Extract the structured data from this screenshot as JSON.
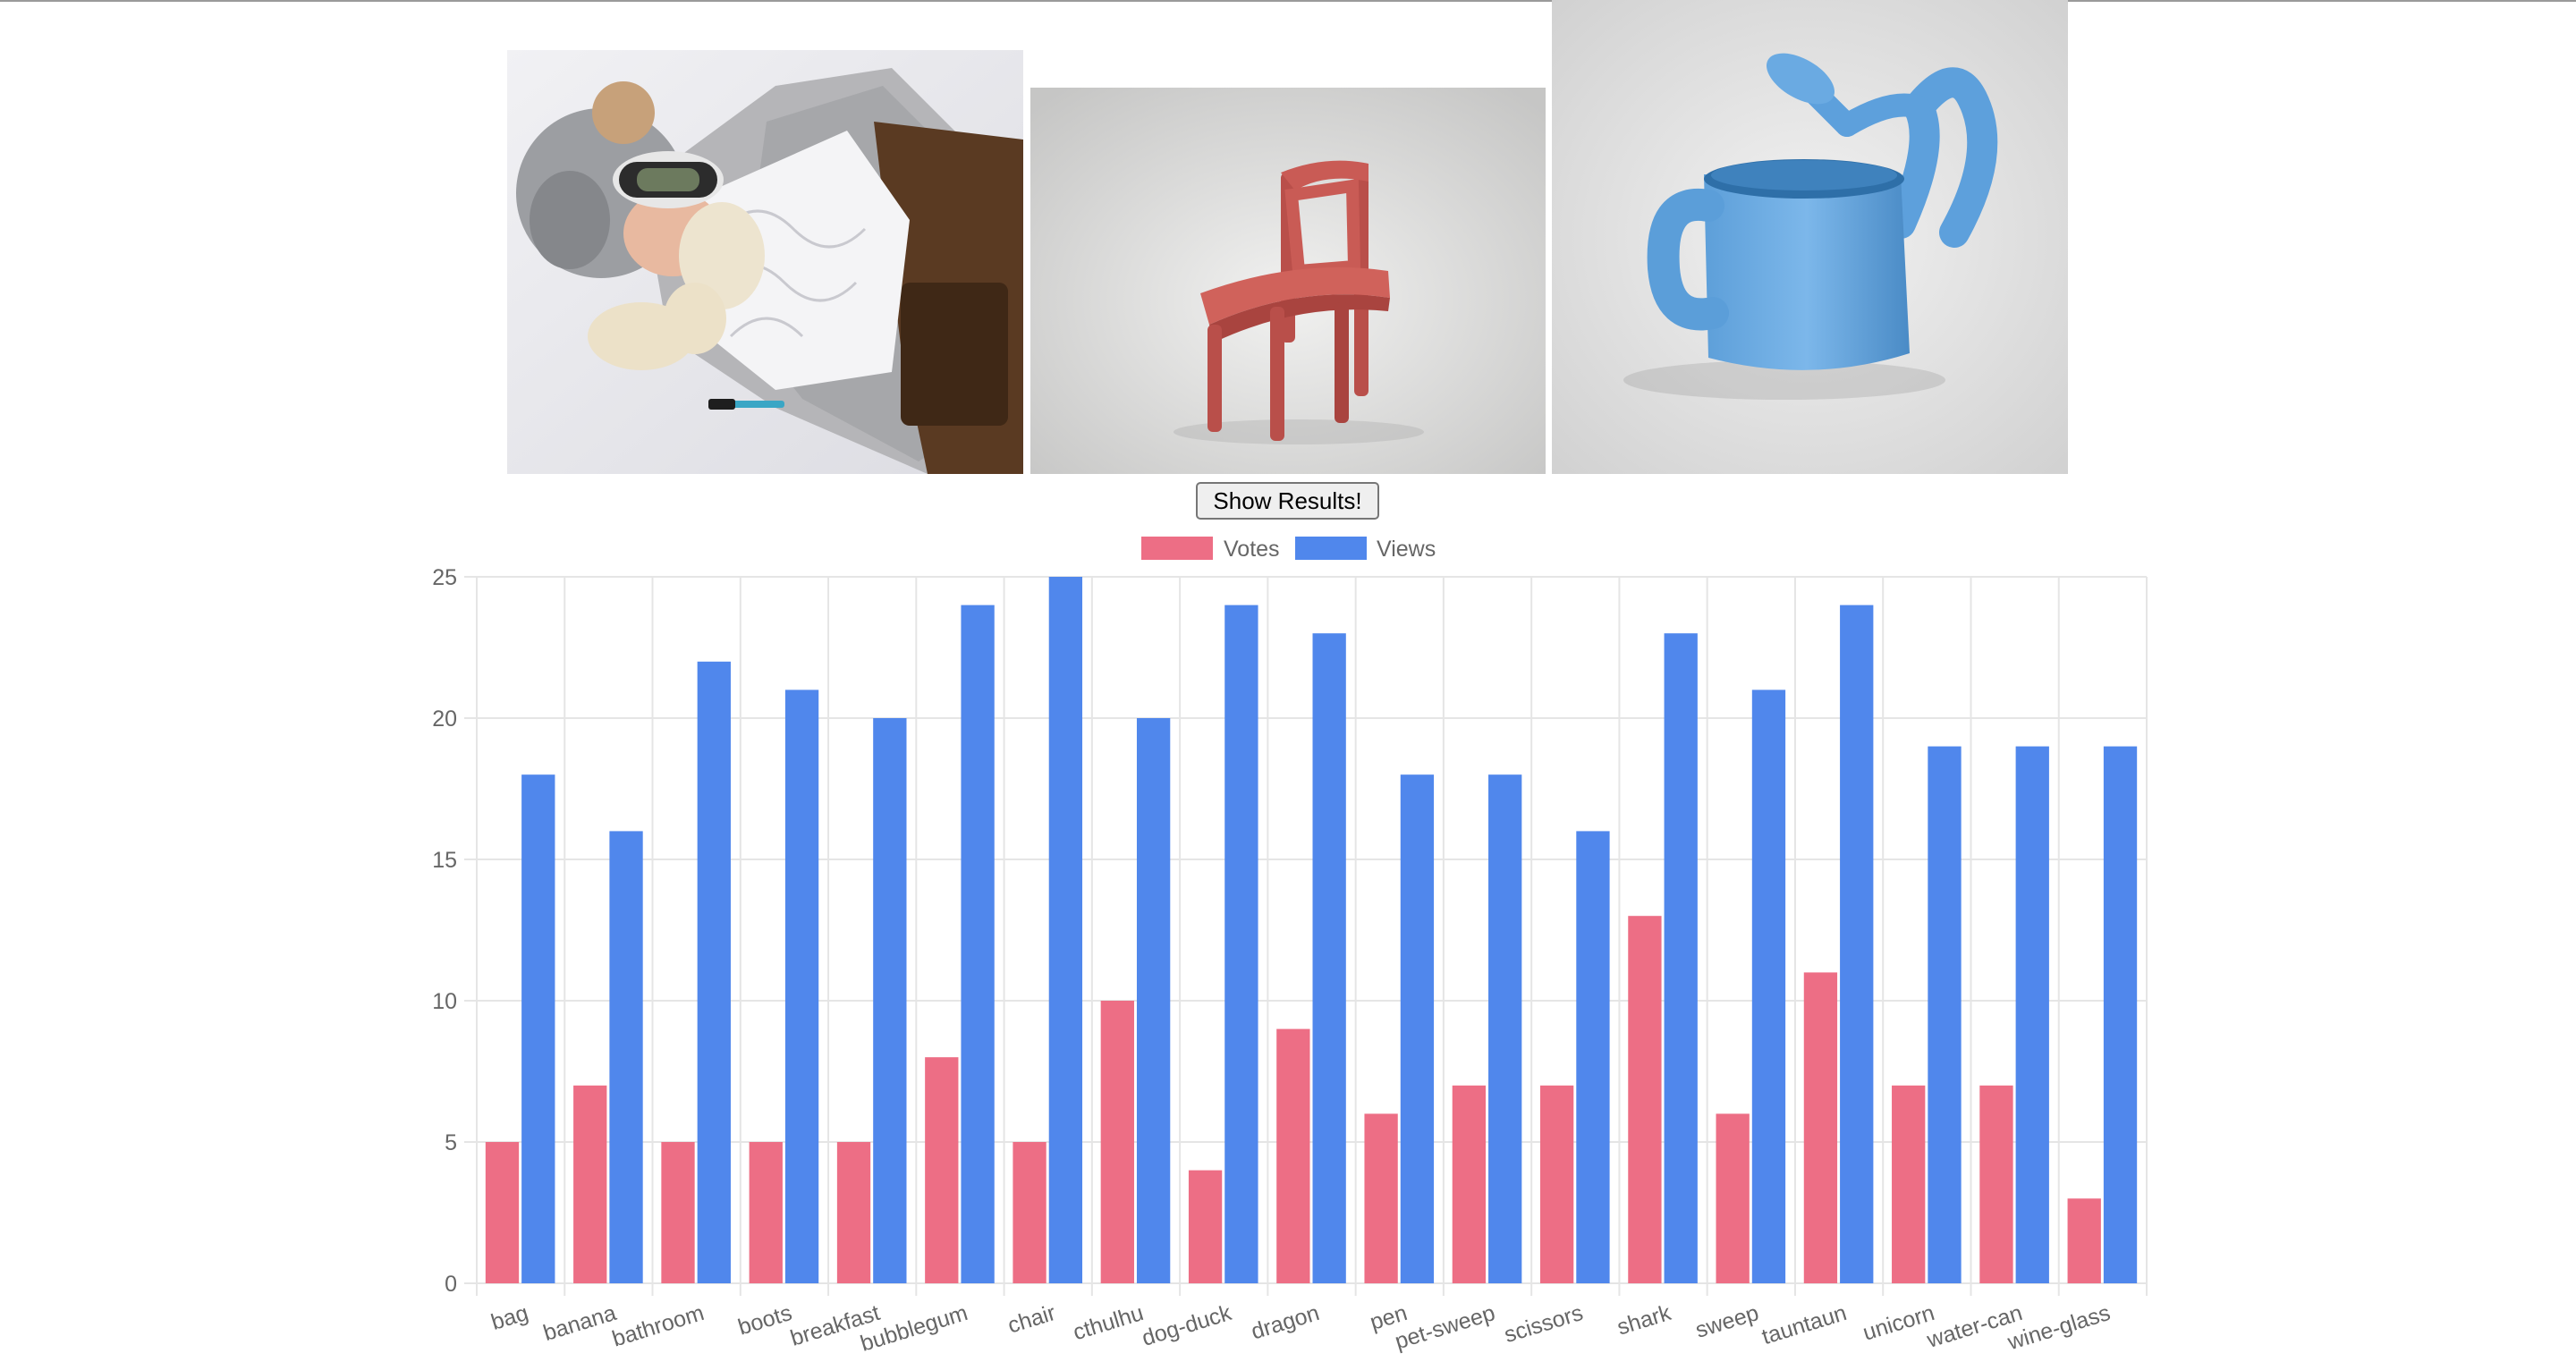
{
  "images": [
    {
      "name": "bag",
      "icon": "tauntaun-sleeping-bag-image"
    },
    {
      "name": "chair",
      "icon": "uncomfortable-chair-image"
    },
    {
      "name": "water-can",
      "icon": "self-watering-can-image"
    }
  ],
  "controls": {
    "show_results_label": "Show Results!"
  },
  "colors": {
    "votes": "#ED6E85",
    "views": "#5087EC",
    "grid": "#e5e5e5",
    "axis_text": "#666666"
  },
  "chart_data": {
    "type": "bar",
    "categories": [
      "bag",
      "banana",
      "bathroom",
      "boots",
      "breakfast",
      "bubblegum",
      "chair",
      "cthulhu",
      "dog-duck",
      "dragon",
      "pen",
      "pet-sweep",
      "scissors",
      "shark",
      "sweep",
      "tauntaun",
      "unicorn",
      "water-can",
      "wine-glass"
    ],
    "series": [
      {
        "name": "Votes",
        "values": [
          5,
          7,
          5,
          5,
          5,
          8,
          5,
          10,
          4,
          9,
          6,
          7,
          7,
          13,
          6,
          11,
          7,
          7,
          3
        ]
      },
      {
        "name": "Views",
        "values": [
          18,
          16,
          22,
          21,
          20,
          24,
          25,
          20,
          24,
          23,
          18,
          18,
          16,
          23,
          21,
          24,
          19,
          19,
          19
        ]
      }
    ],
    "ylim": [
      0,
      25
    ],
    "yticks": [
      "0",
      "5",
      "10",
      "15",
      "20",
      "25"
    ],
    "legend_position": "top",
    "grid": true
  }
}
